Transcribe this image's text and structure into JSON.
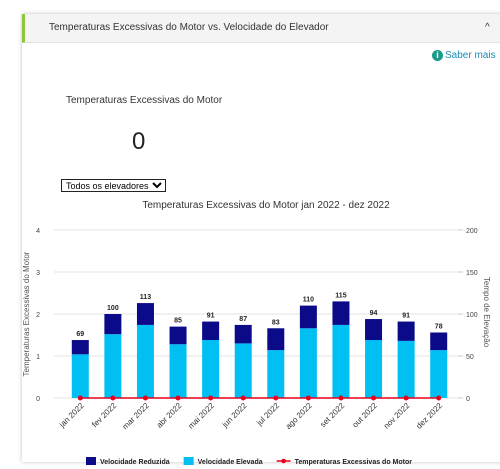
{
  "header": {
    "title": "Temperaturas Excessivas do Motor vs. Velocidade do Elevador",
    "link": "Saber mais"
  },
  "kpi": {
    "label": "Temperaturas Excessivas do Motor",
    "value": 0
  },
  "filter": {
    "selected": "Todos os elevadores"
  },
  "chart_data": {
    "type": "bar",
    "stacked": true,
    "title": "Temperaturas Excessivas do Motor jan 2022 - dez 2022",
    "categories": [
      "jan 2022",
      "fev 2022",
      "mar 2022",
      "abr 2022",
      "mai 2022",
      "jun 2022",
      "jul 2022",
      "ago 2022",
      "set 2022",
      "out 2022",
      "nov 2022",
      "dez 2022"
    ],
    "series": [
      {
        "name": "Velocidade Reduzida",
        "color": "#0b0b8a",
        "axis": "y2",
        "values": [
          17,
          24,
          26,
          21,
          22,
          22,
          26,
          27,
          28,
          25,
          23,
          21
        ]
      },
      {
        "name": "Velocidade Elevada",
        "color": "#00bff3",
        "axis": "y2",
        "values": [
          52,
          76,
          87,
          64,
          69,
          65,
          57,
          83,
          87,
          69,
          68,
          57
        ]
      },
      {
        "name": "Temperaturas Excessivas do Motor",
        "color": "#e8001c",
        "type": "line",
        "values": [
          0,
          0,
          0,
          0,
          0,
          0,
          0,
          0,
          0,
          0,
          0,
          0
        ]
      }
    ],
    "total_labels": [
      69,
      100,
      113,
      85,
      91,
      87,
      83,
      110,
      115,
      94,
      91,
      78
    ],
    "ylabel": "Temperaturas Excessivas do Motor",
    "y2label": "Tempo de Elevação",
    "ylim": [
      0,
      4
    ],
    "yticks": [
      0,
      1,
      2,
      3,
      4
    ],
    "y2lim": [
      0,
      200
    ],
    "y2ticks": [
      0,
      50,
      100,
      150,
      200
    ],
    "grid": true,
    "legend": "bottom"
  }
}
